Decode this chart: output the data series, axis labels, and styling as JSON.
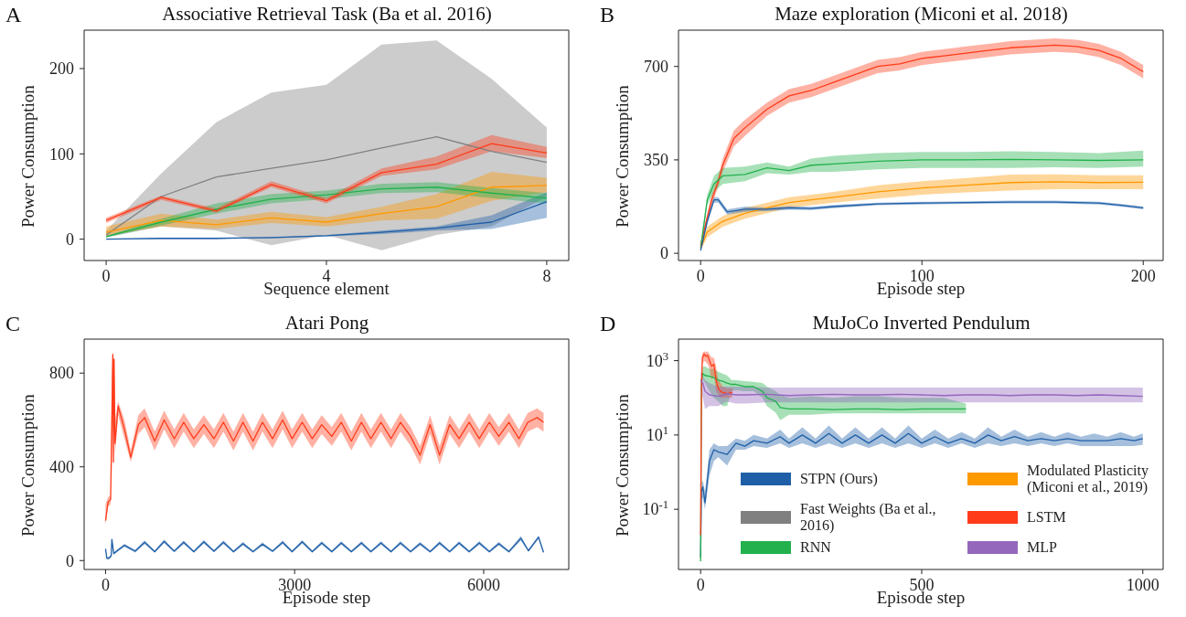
{
  "chart_data": [
    {
      "type": "line",
      "title": "Associative Retrieval Task (Ba et al. 2016)",
      "xlabel": "Sequence element",
      "ylabel": "Power Consumption",
      "annotations": [
        "A"
      ],
      "xlim": [
        -0.4,
        8.4
      ],
      "xticks": [
        0,
        4,
        8
      ],
      "ylim": [
        -25,
        245
      ],
      "yticks": [
        0,
        100,
        200
      ],
      "series": [
        {
          "color": "#808080",
          "x": [
            0,
            1,
            2,
            3,
            4,
            5,
            6,
            7,
            8
          ],
          "values": [
            5,
            50,
            73,
            83,
            93,
            107,
            120,
            103,
            90
          ],
          "lower": [
            2,
            15,
            10,
            -7,
            5,
            -13,
            5,
            15,
            50
          ],
          "upper": [
            10,
            77,
            137,
            172,
            181,
            228,
            233,
            188,
            131
          ]
        },
        {
          "color": "#1f5fa8",
          "x": [
            0,
            1,
            2,
            3,
            4,
            5,
            6,
            7,
            8
          ],
          "values": [
            0,
            1,
            1,
            2,
            4,
            8,
            13,
            20,
            44
          ],
          "lower": [
            0,
            0,
            0,
            1,
            3,
            6,
            10,
            12,
            25
          ],
          "upper": [
            0,
            1,
            1,
            2,
            5,
            10,
            15,
            28,
            55
          ]
        },
        {
          "color": "#ff9900",
          "x": [
            0,
            1,
            2,
            3,
            4,
            5,
            6,
            7,
            8
          ],
          "values": [
            8,
            22,
            17,
            25,
            20,
            30,
            38,
            61,
            63
          ],
          "lower": [
            4,
            15,
            12,
            19,
            15,
            22,
            24,
            45,
            55
          ],
          "upper": [
            15,
            30,
            23,
            32,
            26,
            38,
            53,
            79,
            72
          ]
        },
        {
          "color": "#22b14c",
          "x": [
            0,
            1,
            2,
            3,
            4,
            5,
            6,
            7,
            8
          ],
          "values": [
            3,
            20,
            35,
            47,
            52,
            59,
            61,
            54,
            48
          ],
          "lower": [
            2,
            16,
            30,
            42,
            47,
            54,
            55,
            48,
            42
          ],
          "upper": [
            4,
            24,
            42,
            53,
            57,
            65,
            67,
            60,
            54
          ]
        },
        {
          "color": "#ff3b1a",
          "x": [
            0,
            1,
            2,
            3,
            4,
            5,
            6,
            7,
            8
          ],
          "values": [
            22,
            49,
            33,
            64,
            45,
            78,
            88,
            112,
            101
          ],
          "lower": [
            19,
            46,
            31,
            61,
            42,
            74,
            82,
            103,
            95
          ],
          "upper": [
            25,
            51,
            36,
            68,
            48,
            83,
            97,
            122,
            108
          ]
        }
      ]
    },
    {
      "type": "line",
      "title": "Maze exploration (Miconi et al. 2018)",
      "xlabel": "Episode step",
      "ylabel": "Power Consumption",
      "annotations": [
        "B"
      ],
      "xlim": [
        -10,
        209
      ],
      "xticks": [
        0,
        100,
        200
      ],
      "ylim": [
        -27,
        836
      ],
      "yticks": [
        0,
        350,
        700
      ],
      "series": [
        {
          "color": "#ff3b1a",
          "x": [
            0,
            2,
            5,
            8,
            10,
            15,
            20,
            30,
            40,
            50,
            60,
            70,
            80,
            90,
            100,
            110,
            120,
            130,
            140,
            150,
            160,
            170,
            180,
            190,
            200
          ],
          "values": [
            30,
            100,
            200,
            270,
            330,
            430,
            470,
            540,
            590,
            610,
            640,
            670,
            700,
            710,
            730,
            740,
            750,
            760,
            770,
            775,
            780,
            775,
            760,
            730,
            680
          ],
          "lower": [
            20,
            85,
            180,
            250,
            305,
            400,
            440,
            515,
            565,
            585,
            615,
            645,
            675,
            685,
            705,
            715,
            725,
            735,
            745,
            750,
            755,
            750,
            735,
            705,
            655
          ],
          "upper": [
            40,
            115,
            220,
            290,
            355,
            460,
            500,
            565,
            615,
            635,
            665,
            695,
            725,
            735,
            755,
            765,
            775,
            785,
            795,
            800,
            805,
            800,
            785,
            755,
            705
          ]
        },
        {
          "color": "#22b14c",
          "x": [
            0,
            3,
            6,
            10,
            20,
            30,
            40,
            50,
            60,
            80,
            100,
            120,
            140,
            160,
            180,
            200
          ],
          "values": [
            20,
            200,
            260,
            290,
            295,
            320,
            310,
            330,
            335,
            345,
            350,
            350,
            352,
            350,
            348,
            350
          ],
          "lower": [
            10,
            180,
            230,
            260,
            270,
            300,
            295,
            305,
            305,
            315,
            320,
            320,
            320,
            322,
            320,
            325
          ],
          "upper": [
            30,
            220,
            290,
            320,
            325,
            340,
            325,
            355,
            365,
            375,
            380,
            380,
            382,
            380,
            375,
            385
          ]
        },
        {
          "color": "#ff9900",
          "x": [
            0,
            3,
            10,
            20,
            30,
            40,
            50,
            60,
            80,
            100,
            120,
            140,
            160,
            180,
            200
          ],
          "values": [
            20,
            80,
            120,
            150,
            170,
            190,
            200,
            210,
            230,
            245,
            255,
            265,
            268,
            265,
            266
          ],
          "lower": [
            10,
            60,
            100,
            130,
            150,
            170,
            180,
            190,
            205,
            220,
            228,
            235,
            240,
            240,
            240
          ],
          "upper": [
            30,
            100,
            140,
            170,
            190,
            210,
            220,
            230,
            255,
            270,
            282,
            295,
            296,
            292,
            292
          ]
        },
        {
          "color": "#1f5fa8",
          "x": [
            0,
            3,
            6,
            8,
            12,
            20,
            30,
            40,
            50,
            60,
            80,
            100,
            120,
            140,
            160,
            180,
            190,
            200
          ],
          "values": [
            10,
            120,
            200,
            200,
            155,
            165,
            165,
            170,
            168,
            175,
            185,
            188,
            190,
            192,
            192,
            188,
            180,
            170
          ],
          "lower": [
            5,
            110,
            190,
            190,
            145,
            155,
            158,
            163,
            162,
            169,
            180,
            183,
            185,
            187,
            187,
            183,
            175,
            165
          ],
          "upper": [
            15,
            130,
            210,
            210,
            165,
            175,
            172,
            177,
            174,
            181,
            190,
            193,
            195,
            197,
            197,
            193,
            185,
            175
          ]
        }
      ]
    },
    {
      "type": "line",
      "title": "Atari Pong",
      "xlabel": "Episode step",
      "ylabel": "Power Consumption",
      "annotations": [
        "C"
      ],
      "xlim": [
        -340,
        7350
      ],
      "xticks": [
        0,
        3000,
        6000
      ],
      "ylim": [
        -38,
        945
      ],
      "yticks": [
        0,
        400,
        800
      ],
      "series": [
        {
          "color": "#ff3b1a",
          "x": [
            0,
            40,
            80,
            100,
            115,
            125,
            135,
            150,
            200,
            300,
            400,
            520,
            620,
            780,
            930,
            1090,
            1240,
            1400,
            1560,
            1720,
            1870,
            2030,
            2180,
            2340,
            2490,
            2650,
            2810,
            2960,
            3120,
            3280,
            3430,
            3590,
            3740,
            3900,
            4060,
            4210,
            4370,
            4530,
            4680,
            4840,
            4990,
            5150,
            5300,
            5460,
            5610,
            5770,
            5930,
            6090,
            6240,
            6400,
            6560,
            6700,
            6850,
            6950
          ],
          "values": [
            170,
            250,
            260,
            600,
            880,
            420,
            860,
            500,
            660,
            560,
            440,
            580,
            610,
            510,
            600,
            520,
            590,
            520,
            580,
            520,
            590,
            510,
            590,
            510,
            590,
            520,
            600,
            520,
            590,
            520,
            580,
            530,
            590,
            510,
            590,
            520,
            590,
            520,
            590,
            530,
            450,
            580,
            450,
            580,
            520,
            590,
            520,
            590,
            530,
            590,
            520,
            590,
            610,
            590
          ],
          "lower": [
            150,
            230,
            240,
            400,
            800,
            400,
            780,
            450,
            620,
            520,
            420,
            540,
            570,
            470,
            560,
            480,
            550,
            480,
            540,
            480,
            550,
            470,
            550,
            470,
            550,
            480,
            560,
            480,
            550,
            480,
            540,
            490,
            550,
            470,
            550,
            480,
            550,
            480,
            550,
            490,
            410,
            540,
            410,
            540,
            480,
            550,
            480,
            550,
            490,
            550,
            480,
            550,
            570,
            550
          ],
          "upper": [
            240,
            270,
            280,
            800,
            900,
            500,
            900,
            600,
            680,
            600,
            470,
            620,
            650,
            550,
            640,
            560,
            630,
            560,
            620,
            560,
            630,
            550,
            630,
            550,
            630,
            560,
            640,
            560,
            630,
            560,
            620,
            570,
            630,
            550,
            630,
            560,
            630,
            560,
            630,
            570,
            490,
            620,
            490,
            620,
            560,
            630,
            560,
            630,
            570,
            630,
            560,
            630,
            650,
            630
          ]
        },
        {
          "color": "#1f5fa8",
          "x": [
            0,
            20,
            50,
            90,
            100,
            130,
            200,
            300,
            470,
            620,
            780,
            930,
            1090,
            1240,
            1400,
            1560,
            1720,
            1870,
            2030,
            2180,
            2340,
            2490,
            2650,
            2810,
            2960,
            3120,
            3280,
            3430,
            3590,
            3740,
            3900,
            4060,
            4210,
            4370,
            4530,
            4680,
            4840,
            4990,
            5150,
            5300,
            5460,
            5610,
            5770,
            5930,
            6090,
            6240,
            6400,
            6590,
            6710,
            6870,
            6950
          ],
          "values": [
            50,
            10,
            10,
            20,
            90,
            30,
            45,
            65,
            40,
            78,
            38,
            82,
            40,
            78,
            38,
            80,
            40,
            78,
            38,
            72,
            38,
            70,
            40,
            78,
            38,
            80,
            38,
            75,
            38,
            75,
            38,
            75,
            38,
            75,
            38,
            75,
            38,
            72,
            38,
            75,
            38,
            75,
            38,
            75,
            38,
            72,
            38,
            95,
            42,
            100,
            35
          ],
          "lower": [
            44,
            4,
            4,
            14,
            70,
            24,
            39,
            59,
            34,
            70,
            33,
            74,
            35,
            70,
            33,
            72,
            35,
            70,
            33,
            64,
            33,
            62,
            35,
            70,
            33,
            72,
            33,
            67,
            33,
            67,
            33,
            67,
            33,
            67,
            33,
            67,
            33,
            64,
            33,
            67,
            33,
            67,
            33,
            67,
            33,
            64,
            33,
            85,
            37,
            92,
            30
          ],
          "upper": [
            56,
            16,
            16,
            26,
            100,
            36,
            51,
            71,
            46,
            86,
            43,
            90,
            45,
            86,
            43,
            88,
            45,
            86,
            43,
            80,
            43,
            78,
            45,
            86,
            43,
            88,
            43,
            83,
            43,
            83,
            43,
            83,
            43,
            83,
            43,
            83,
            43,
            80,
            43,
            83,
            43,
            83,
            43,
            83,
            43,
            80,
            43,
            105,
            47,
            106,
            40
          ]
        }
      ]
    },
    {
      "type": "line",
      "title": "MuJoCo Inverted Pendulum",
      "xlabel": "Episode step",
      "ylabel": "Power Consumption",
      "annotations": [
        "D"
      ],
      "log": "y",
      "legend": "bottom",
      "xlim": [
        -50,
        1046
      ],
      "xticks": [
        0,
        500,
        1000
      ],
      "ylim": [
        0.0024,
        3800
      ],
      "yticks": [
        {
          "value": 0.1,
          "label": "10$^{-1}$"
        },
        {
          "value": 10,
          "label": "10$^{1}$"
        },
        {
          "value": 1000,
          "label": "10$^{3}$"
        }
      ],
      "series": [
        {
          "name": "STPN (Ours)",
          "color": "#1f5fa8",
          "x": [
            0,
            2,
            5,
            10,
            20,
            30,
            40,
            60,
            80,
            100,
            120,
            150,
            180,
            200,
            230,
            260,
            290,
            320,
            350,
            380,
            410,
            440,
            470,
            500,
            530,
            560,
            590,
            620,
            650,
            680,
            710,
            740,
            770,
            800,
            830,
            860,
            890,
            920,
            950,
            980,
            1000
          ],
          "values": [
            0.005,
            0.3,
            0.4,
            0.15,
            2,
            4,
            3.5,
            3,
            6,
            5,
            7,
            6,
            9,
            6,
            10,
            6,
            11,
            6,
            10,
            6,
            10,
            6,
            11,
            6,
            9,
            6,
            8,
            6,
            10,
            7,
            9,
            7,
            8,
            7,
            8,
            7,
            7,
            7,
            8,
            7,
            8
          ],
          "lower": [
            null,
            0.2,
            0.2,
            0.1,
            0.8,
            2,
            2.5,
            1.5,
            4,
            4,
            5,
            4.5,
            6,
            4.5,
            6,
            4.5,
            6,
            4.5,
            6,
            4.5,
            6,
            4.5,
            6,
            4.5,
            6,
            4.5,
            6,
            4.5,
            6,
            5,
            6,
            5,
            6,
            5,
            6,
            5,
            5,
            5,
            5,
            5,
            5.5
          ],
          "upper": [
            null,
            0.5,
            0.6,
            0.3,
            4,
            6,
            5,
            5,
            8,
            7,
            10,
            8,
            14,
            8,
            16,
            8,
            18,
            8,
            16,
            8,
            16,
            8,
            18,
            8,
            14,
            8,
            12,
            8,
            16,
            9,
            14,
            9,
            12,
            9,
            12,
            9,
            11,
            9,
            12,
            9,
            11
          ]
        },
        {
          "name": "Fast Weights (Ba et al., 2016)",
          "color": "#808080"
        },
        {
          "name": "RNN",
          "color": "#22b14c",
          "x": [
            0,
            2,
            5,
            10,
            20,
            30,
            40,
            50,
            60,
            70,
            80,
            100,
            120,
            140,
            150,
            170,
            180,
            200,
            250,
            300,
            350,
            400,
            450,
            500,
            550,
            600
          ],
          "values": [
            0.004,
            300,
            450,
            400,
            380,
            350,
            300,
            280,
            250,
            230,
            230,
            200,
            200,
            150,
            100,
            80,
            55,
            50,
            50,
            48,
            50,
            50,
            48,
            50,
            50,
            50
          ],
          "lower": [
            null,
            200,
            300,
            250,
            150,
            100,
            80,
            60,
            60,
            150,
            160,
            150,
            150,
            100,
            60,
            40,
            25,
            35,
            35,
            38,
            38,
            38,
            38,
            38,
            38,
            38
          ],
          "upper": [
            null,
            450,
            700,
            700,
            600,
            600,
            500,
            450,
            400,
            300,
            300,
            280,
            270,
            250,
            200,
            150,
            120,
            100,
            110,
            100,
            110,
            110,
            100,
            100,
            100,
            70
          ]
        },
        {
          "name": "Modulated Plasticity (Miconi et al., 2019)",
          "color": "#ff9900"
        },
        {
          "name": "LSTM",
          "color": "#ff3b1a",
          "x": [
            0,
            2,
            4,
            8,
            12,
            16,
            20,
            25,
            30,
            35,
            40,
            45,
            50,
            60,
            72
          ],
          "values": [
            0.02,
            200,
            1200,
            1500,
            1300,
            1400,
            1000,
            700,
            800,
            300,
            180,
            150,
            140,
            130,
            140
          ],
          "lower": [
            null,
            100,
            800,
            1000,
            900,
            800,
            600,
            300,
            400,
            150,
            120,
            100,
            100,
            100,
            100
          ],
          "upper": [
            null,
            400,
            1600,
            1800,
            1700,
            1800,
            1500,
            1200,
            1200,
            700,
            300,
            250,
            200,
            180,
            180
          ]
        },
        {
          "name": "MLP",
          "color": "#9467bd",
          "x": [
            0,
            5,
            10,
            20,
            40,
            60,
            80,
            100,
            150,
            200,
            250,
            300,
            350,
            400,
            450,
            500,
            550,
            600,
            650,
            700,
            750,
            800,
            850,
            900,
            950,
            1000
          ],
          "values": [
            300,
            250,
            150,
            120,
            110,
            130,
            120,
            120,
            125,
            115,
            120,
            125,
            120,
            120,
            125,
            120,
            115,
            120,
            120,
            115,
            120,
            120,
            115,
            120,
            115,
            110
          ],
          "lower": [
            150,
            100,
            50,
            60,
            60,
            80,
            70,
            70,
            75,
            75,
            75,
            75,
            75,
            75,
            75,
            75,
            75,
            75,
            75,
            75,
            75,
            75,
            75,
            75,
            75,
            75
          ],
          "upper": [
            500,
            400,
            300,
            250,
            200,
            200,
            200,
            200,
            190,
            190,
            190,
            190,
            190,
            190,
            190,
            190,
            190,
            190,
            190,
            190,
            190,
            190,
            190,
            190,
            190,
            190
          ]
        }
      ]
    }
  ]
}
